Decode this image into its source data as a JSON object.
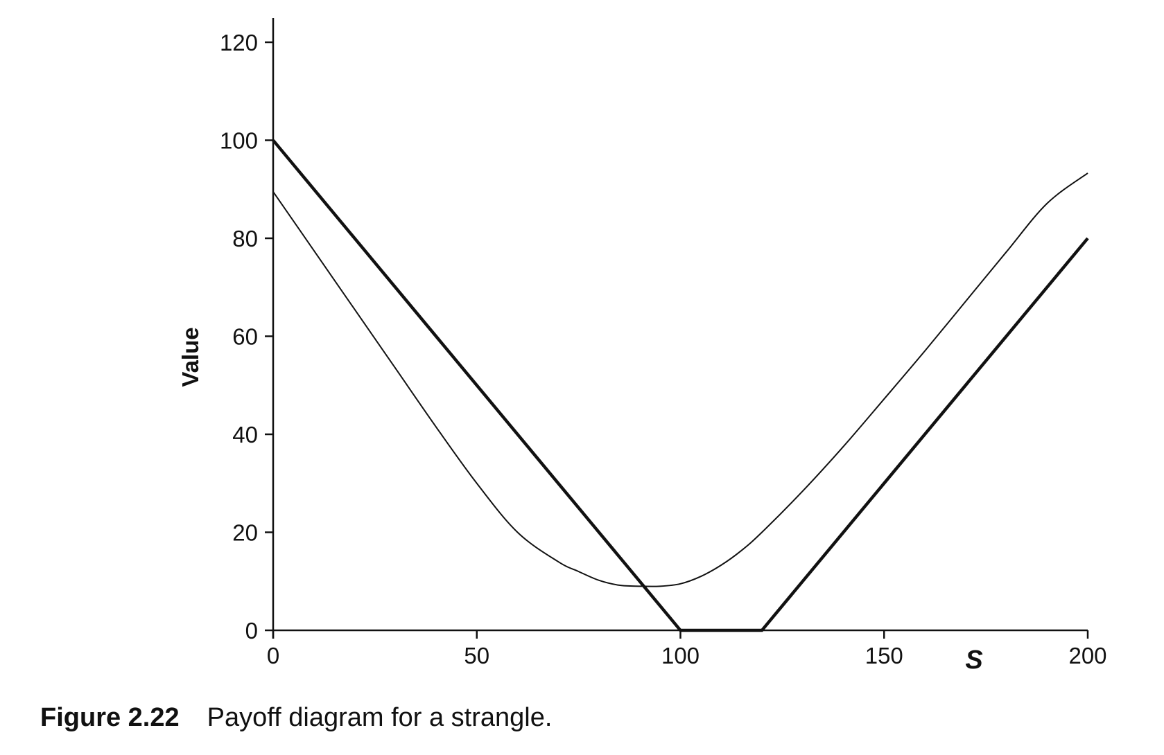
{
  "chart_data": {
    "type": "line",
    "title": "",
    "xlabel": "S",
    "ylabel": "Value",
    "xlim": [
      0,
      200
    ],
    "ylim": [
      0,
      120
    ],
    "x_ticks": [
      "0",
      "50",
      "100",
      "150",
      "200"
    ],
    "y_ticks": [
      "0",
      "20",
      "40",
      "60",
      "80",
      "100",
      "120"
    ],
    "grid": false,
    "legend": "none",
    "series": [
      {
        "style": "thick",
        "color": "#111111",
        "x": [
          0,
          100,
          120,
          200
        ],
        "y": [
          100,
          0,
          0,
          80
        ]
      },
      {
        "style": "thin",
        "color": "#111111",
        "x": [
          0,
          10,
          20,
          30,
          40,
          50,
          60,
          70,
          75,
          80,
          85,
          90,
          95,
          100,
          105,
          110,
          115,
          120,
          130,
          140,
          150,
          160,
          170,
          180,
          190,
          200
        ],
        "y": [
          89.5,
          77.5,
          65.5,
          53.5,
          41.5,
          30,
          20,
          14,
          12,
          10.2,
          9.2,
          9,
          9,
          9.5,
          11,
          13.3,
          16.3,
          20,
          28.4,
          37.5,
          47.2,
          57,
          67.1,
          77.2,
          87.1,
          93.3
        ]
      }
    ]
  },
  "caption": {
    "label": "Figure 2.22",
    "text": "Payoff diagram for a strangle."
  }
}
